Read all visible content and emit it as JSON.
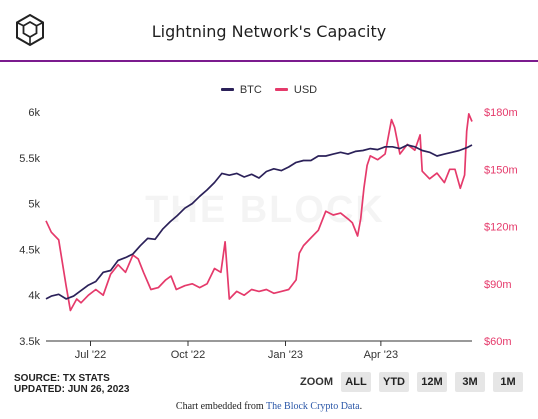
{
  "header": {
    "title": "Lightning Network's Capacity"
  },
  "watermark": "THE BLOCK",
  "colors": {
    "btc": "#2b2159",
    "usd": "#e53a6b",
    "rule": "#7b1b8e",
    "left_axis_text": "#333333",
    "right_axis_text": "#e53a6b"
  },
  "chart_data": {
    "type": "line",
    "title": "Lightning Network's Capacity",
    "x_ticks": [
      "Jul '22",
      "Oct '22",
      "Jan '23",
      "Apr '23"
    ],
    "x_tick_dates": [
      "2022-07-01",
      "2022-10-01",
      "2023-01-01",
      "2023-04-01"
    ],
    "x_range": [
      "2022-05-20",
      "2023-06-26"
    ],
    "left_axis": {
      "ticks": [
        "3.5k",
        "4k",
        "4.5k",
        "5k",
        "5.5k",
        "6k"
      ],
      "range": [
        3500,
        6000
      ]
    },
    "right_axis": {
      "ticks": [
        "$60m",
        "$90m",
        "$120m",
        "$150m",
        "$180m"
      ],
      "range": [
        60,
        180
      ]
    },
    "legend_position": "top-center",
    "grid": false,
    "series": [
      {
        "name": "BTC",
        "axis": "left",
        "color": "#2b2159",
        "points": [
          [
            "2022-05-20",
            3960
          ],
          [
            "2022-05-25",
            3990
          ],
          [
            "2022-06-01",
            4010
          ],
          [
            "2022-06-08",
            3960
          ],
          [
            "2022-06-15",
            3990
          ],
          [
            "2022-06-22",
            4050
          ],
          [
            "2022-06-29",
            4110
          ],
          [
            "2022-07-06",
            4150
          ],
          [
            "2022-07-13",
            4250
          ],
          [
            "2022-07-20",
            4270
          ],
          [
            "2022-07-27",
            4380
          ],
          [
            "2022-08-03",
            4410
          ],
          [
            "2022-08-10",
            4450
          ],
          [
            "2022-08-17",
            4540
          ],
          [
            "2022-08-24",
            4620
          ],
          [
            "2022-08-31",
            4610
          ],
          [
            "2022-09-07",
            4720
          ],
          [
            "2022-09-14",
            4800
          ],
          [
            "2022-09-21",
            4870
          ],
          [
            "2022-09-28",
            4950
          ],
          [
            "2022-10-05",
            5000
          ],
          [
            "2022-10-12",
            5080
          ],
          [
            "2022-10-19",
            5150
          ],
          [
            "2022-10-26",
            5230
          ],
          [
            "2022-11-02",
            5330
          ],
          [
            "2022-11-09",
            5310
          ],
          [
            "2022-11-16",
            5330
          ],
          [
            "2022-11-23",
            5290
          ],
          [
            "2022-11-30",
            5320
          ],
          [
            "2022-12-07",
            5280
          ],
          [
            "2022-12-14",
            5350
          ],
          [
            "2022-12-21",
            5380
          ],
          [
            "2022-12-28",
            5360
          ],
          [
            "2023-01-04",
            5400
          ],
          [
            "2023-01-11",
            5450
          ],
          [
            "2023-01-18",
            5470
          ],
          [
            "2023-01-25",
            5470
          ],
          [
            "2023-02-01",
            5520
          ],
          [
            "2023-02-08",
            5520
          ],
          [
            "2023-02-15",
            5540
          ],
          [
            "2023-02-22",
            5560
          ],
          [
            "2023-03-01",
            5540
          ],
          [
            "2023-03-08",
            5570
          ],
          [
            "2023-03-15",
            5580
          ],
          [
            "2023-03-22",
            5600
          ],
          [
            "2023-03-29",
            5590
          ],
          [
            "2023-04-05",
            5620
          ],
          [
            "2023-04-12",
            5620
          ],
          [
            "2023-04-19",
            5600
          ],
          [
            "2023-04-26",
            5640
          ],
          [
            "2023-05-03",
            5620
          ],
          [
            "2023-05-10",
            5580
          ],
          [
            "2023-05-17",
            5560
          ],
          [
            "2023-05-24",
            5520
          ],
          [
            "2023-05-31",
            5540
          ],
          [
            "2023-06-07",
            5560
          ],
          [
            "2023-06-14",
            5580
          ],
          [
            "2023-06-21",
            5610
          ],
          [
            "2023-06-26",
            5640
          ]
        ]
      },
      {
        "name": "USD",
        "axis": "right",
        "color": "#e53a6b",
        "points": [
          [
            "2022-05-20",
            123
          ],
          [
            "2022-05-25",
            117
          ],
          [
            "2022-06-01",
            113
          ],
          [
            "2022-06-08",
            89
          ],
          [
            "2022-06-12",
            76
          ],
          [
            "2022-06-18",
            82
          ],
          [
            "2022-06-22",
            80
          ],
          [
            "2022-06-29",
            84
          ],
          [
            "2022-07-06",
            87
          ],
          [
            "2022-07-13",
            84
          ],
          [
            "2022-07-20",
            95
          ],
          [
            "2022-07-27",
            100
          ],
          [
            "2022-08-03",
            96
          ],
          [
            "2022-08-10",
            105
          ],
          [
            "2022-08-15",
            103
          ],
          [
            "2022-08-20",
            96
          ],
          [
            "2022-08-27",
            87
          ],
          [
            "2022-09-03",
            88
          ],
          [
            "2022-09-10",
            92
          ],
          [
            "2022-09-15",
            94
          ],
          [
            "2022-09-20",
            87
          ],
          [
            "2022-09-28",
            89
          ],
          [
            "2022-10-05",
            90
          ],
          [
            "2022-10-12",
            88
          ],
          [
            "2022-10-19",
            90
          ],
          [
            "2022-10-26",
            98
          ],
          [
            "2022-11-01",
            96
          ],
          [
            "2022-11-05",
            112
          ],
          [
            "2022-11-09",
            82
          ],
          [
            "2022-11-16",
            86
          ],
          [
            "2022-11-23",
            84
          ],
          [
            "2022-11-30",
            87
          ],
          [
            "2022-12-07",
            86
          ],
          [
            "2022-12-14",
            87
          ],
          [
            "2022-12-21",
            85
          ],
          [
            "2022-12-28",
            86
          ],
          [
            "2023-01-04",
            87
          ],
          [
            "2023-01-11",
            92
          ],
          [
            "2023-01-14",
            106
          ],
          [
            "2023-01-18",
            110
          ],
          [
            "2023-01-25",
            114
          ],
          [
            "2023-02-01",
            118
          ],
          [
            "2023-02-08",
            128
          ],
          [
            "2023-02-15",
            126
          ],
          [
            "2023-02-22",
            127
          ],
          [
            "2023-03-01",
            124
          ],
          [
            "2023-03-05",
            122
          ],
          [
            "2023-03-10",
            115
          ],
          [
            "2023-03-13",
            124
          ],
          [
            "2023-03-16",
            140
          ],
          [
            "2023-03-19",
            152
          ],
          [
            "2023-03-22",
            157
          ],
          [
            "2023-03-29",
            155
          ],
          [
            "2023-04-05",
            158
          ],
          [
            "2023-04-11",
            176
          ],
          [
            "2023-04-14",
            172
          ],
          [
            "2023-04-19",
            158
          ],
          [
            "2023-04-26",
            163
          ],
          [
            "2023-05-03",
            160
          ],
          [
            "2023-05-08",
            168
          ],
          [
            "2023-05-10",
            149
          ],
          [
            "2023-05-17",
            145
          ],
          [
            "2023-05-24",
            148
          ],
          [
            "2023-05-31",
            143
          ],
          [
            "2023-06-05",
            150
          ],
          [
            "2023-06-10",
            150
          ],
          [
            "2023-06-15",
            140
          ],
          [
            "2023-06-19",
            147
          ],
          [
            "2023-06-21",
            170
          ],
          [
            "2023-06-23",
            179
          ],
          [
            "2023-06-26",
            175
          ]
        ]
      }
    ]
  },
  "footer": {
    "source": "SOURCE: TX STATS",
    "updated": "UPDATED: JUN 26, 2023",
    "zoom_label": "ZOOM",
    "zoom_buttons": [
      "ALL",
      "YTD",
      "12M",
      "3M",
      "1M"
    ],
    "embed_prefix": "Chart embedded from ",
    "embed_link": "The Block Crypto Data",
    "embed_suffix": "."
  }
}
